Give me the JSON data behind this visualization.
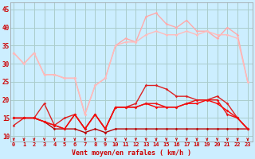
{
  "xlabel": "Vent moyen/en rafales ( km/h )",
  "background_color": "#cceeff",
  "grid_color": "#aacccc",
  "x_ticks": [
    0,
    1,
    2,
    3,
    4,
    5,
    6,
    7,
    8,
    9,
    10,
    11,
    12,
    13,
    14,
    15,
    16,
    17,
    18,
    19,
    20,
    21,
    22,
    23
  ],
  "y_ticks": [
    10,
    15,
    20,
    25,
    30,
    35,
    40,
    45
  ],
  "ylim": [
    8.5,
    47
  ],
  "xlim": [
    -0.3,
    23.5
  ],
  "series": [
    {
      "x": [
        0,
        1,
        2,
        3,
        4,
        5,
        6,
        7,
        8,
        9,
        10,
        11,
        12,
        13,
        14,
        15,
        16,
        17,
        18,
        19,
        20,
        21,
        22,
        23
      ],
      "y": [
        33,
        30,
        33,
        27,
        27,
        26,
        26,
        16,
        24,
        26,
        35,
        37,
        36,
        43,
        44,
        41,
        40,
        42,
        39,
        39,
        37,
        40,
        38,
        25
      ],
      "color": "#ffaaaa",
      "marker": "D",
      "markersize": 1.8,
      "linewidth": 1.0
    },
    {
      "x": [
        0,
        1,
        2,
        3,
        4,
        5,
        6,
        7,
        8,
        9,
        10,
        11,
        12,
        13,
        14,
        15,
        16,
        17,
        18,
        19,
        20,
        21,
        22,
        23
      ],
      "y": [
        33,
        30,
        33,
        27,
        27,
        26,
        26,
        16,
        24,
        26,
        35,
        36,
        36,
        38,
        39,
        38,
        38,
        39,
        38,
        39,
        38,
        38,
        37,
        25
      ],
      "color": "#ffbbbb",
      "marker": "D",
      "markersize": 1.8,
      "linewidth": 1.0
    },
    {
      "x": [
        0,
        1,
        2,
        3,
        4,
        5,
        6,
        7,
        8,
        9,
        10,
        11,
        12,
        13,
        14,
        15,
        16,
        17,
        18,
        19,
        20,
        21,
        22,
        23
      ],
      "y": [
        13,
        15,
        15,
        19,
        13,
        15,
        16,
        12,
        16,
        12,
        18,
        18,
        19,
        24,
        24,
        23,
        21,
        21,
        20,
        20,
        21,
        19,
        15,
        12
      ],
      "color": "#dd2222",
      "marker": "D",
      "markersize": 1.8,
      "linewidth": 1.0
    },
    {
      "x": [
        0,
        1,
        2,
        3,
        4,
        5,
        6,
        7,
        8,
        9,
        10,
        11,
        12,
        13,
        14,
        15,
        16,
        17,
        18,
        19,
        20,
        21,
        22,
        23
      ],
      "y": [
        15,
        15,
        15,
        14,
        12,
        12,
        12,
        11,
        12,
        11,
        12,
        12,
        12,
        12,
        12,
        12,
        12,
        12,
        12,
        12,
        12,
        12,
        12,
        12
      ],
      "color": "#bb0000",
      "marker": "D",
      "markersize": 1.8,
      "linewidth": 1.0
    },
    {
      "x": [
        0,
        1,
        2,
        3,
        4,
        5,
        6,
        7,
        8,
        9,
        10,
        11,
        12,
        13,
        14,
        15,
        16,
        17,
        18,
        19,
        20,
        21,
        22,
        23
      ],
      "y": [
        15,
        15,
        15,
        14,
        13,
        12,
        16,
        12,
        16,
        12,
        18,
        18,
        18,
        19,
        18,
        18,
        18,
        19,
        19,
        20,
        19,
        17,
        15,
        12
      ],
      "color": "#ff0000",
      "marker": "D",
      "markersize": 1.8,
      "linewidth": 1.0
    },
    {
      "x": [
        0,
        1,
        2,
        3,
        4,
        5,
        6,
        7,
        8,
        9,
        10,
        11,
        12,
        13,
        14,
        15,
        16,
        17,
        18,
        19,
        20,
        21,
        22,
        23
      ],
      "y": [
        15,
        15,
        15,
        14,
        13,
        12,
        16,
        12,
        16,
        12,
        18,
        18,
        18,
        19,
        19,
        18,
        18,
        19,
        20,
        20,
        20,
        16,
        15,
        12
      ],
      "color": "#ee1111",
      "marker": "D",
      "markersize": 1.8,
      "linewidth": 1.0
    }
  ],
  "arrow_color": "#cc0000",
  "tick_color": "#cc0000",
  "label_color": "#cc0000",
  "xlabel_fontsize": 6.0,
  "xtick_fontsize": 5.0,
  "ytick_fontsize": 5.5
}
